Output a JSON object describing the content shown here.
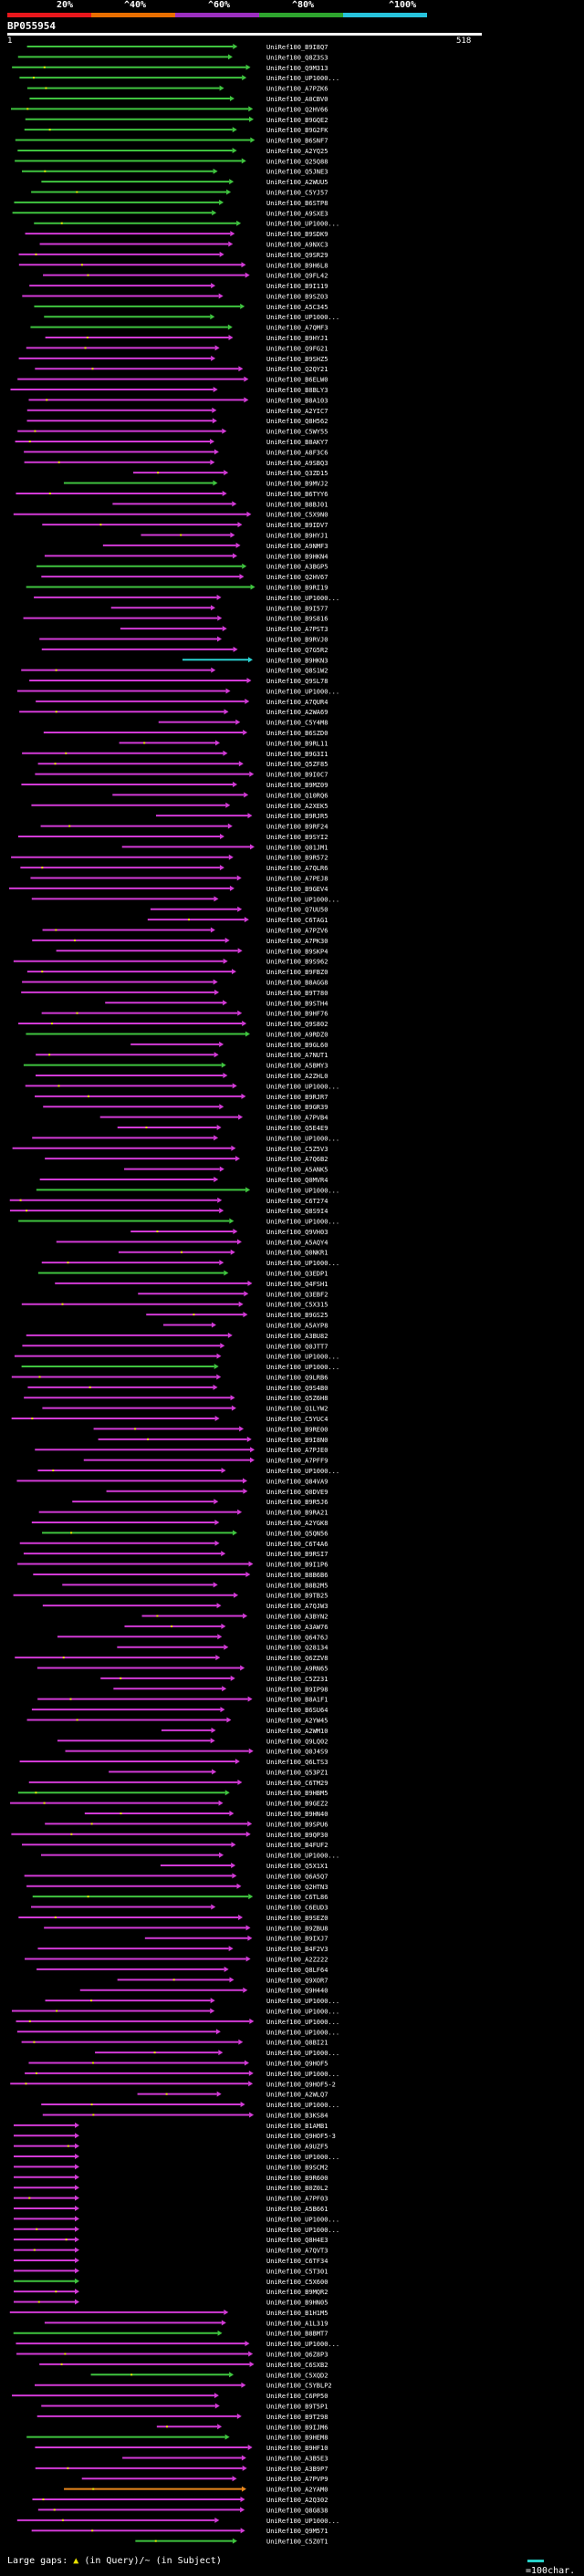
{
  "legend": {
    "labels": [
      "20%",
      "^40%",
      "^60%",
      "^80%",
      "^100%"
    ],
    "colors": [
      "#e8171c",
      "#e86e00",
      "#9b2fbf",
      "#2ea52e",
      "#27c3dc"
    ]
  },
  "query": {
    "name": "BP055954",
    "start": "1",
    "end": "518"
  },
  "colors": {
    "magenta": "#d23ad6",
    "green": "#3fc43f",
    "cyan": "#2ad0d0",
    "orange": "#e8871c",
    "dot": "#e8e800"
  },
  "footer": {
    "gaps_label": "Large gaps:",
    "query_gap": "(in Query)/~ (in Subject)",
    "scale": "=100char."
  },
  "hits": [
    "UniRef100_B9I8Q7",
    "UniRef100_Q8Z3S3",
    "UniRef100_Q9M313",
    "UniRef100_UP1000...",
    "UniRef100_A7PZK6",
    "UniRef100_A0CBV0",
    "UniRef100_Q2HV66",
    "UniRef100_B9GQE2",
    "UniRef100_B9G2FK",
    "UniRef100_B6SNF7",
    "UniRef100_A2YQ25",
    "UniRef100_Q25Q88",
    "UniRef100_Q5JNE3",
    "UniRef100_A2WUU5",
    "UniRef100_C5YJ57",
    "UniRef100_B6STP8",
    "UniRef100_A9SXE3",
    "UniRef100_UP1000...",
    "UniRef100_B9SDK9",
    "UniRef100_A9NXC3",
    "UniRef100_Q9SR29",
    "UniRef100_B9H6L8",
    "UniRef100_Q9FL42",
    "UniRef100_B9I119",
    "UniRef100_B9SZ03",
    "UniRef100_A5C345",
    "UniRef100_UP1000...",
    "UniRef100_A7QMF3",
    "UniRef100_B9HYJ1",
    "UniRef100_Q9FG21",
    "UniRef100_B9SHZ5",
    "UniRef100_Q2QY21",
    "UniRef100_B6ELW0",
    "UniRef100_B8BLY3",
    "UniRef100_B8A103",
    "UniRef100_A2YIC7",
    "UniRef100_Q8H562",
    "UniRef100_C5WY55",
    "UniRef100_B8AKY7",
    "UniRef100_A8F3C6",
    "UniRef100_A9SBQ3",
    "UniRef100_Q3ZD15",
    "UniRef100_B9MVJ2",
    "UniRef100_B6TYY6",
    "UniRef100_B8BJ01",
    "UniRef100_C5X9N0",
    "UniRef100_B9IDV7",
    "UniRef100_B9HYJ1",
    "UniRef100_A9NMF3",
    "UniRef100_B9HKN4",
    "UniRef100_A3BGP5",
    "UniRef100_Q2HV67",
    "UniRef100_B9RI19",
    "UniRef100_UP1000...",
    "UniRef100_B9I577",
    "UniRef100_B9S816",
    "UniRef100_A7PST3",
    "UniRef100_B9RVJ0",
    "UniRef100_Q7G5R2",
    "UniRef100_B9HKN3",
    "UniRef100_Q8S1W2",
    "UniRef100_Q9SL78",
    "UniRef100_UP1000...",
    "UniRef100_A7QUR4",
    "UniRef100_A2WA69",
    "UniRef100_C5Y4M8",
    "UniRef100_B6SZD0",
    "UniRef100_B9RL11",
    "UniRef100_B9G3I1",
    "UniRef100_Q5ZF85",
    "UniRef100_B9I0C7",
    "UniRef100_B9MZ09",
    "UniRef100_Q10RQ6",
    "UniRef100_A2XEK5",
    "UniRef100_B9RJR5",
    "UniRef100_B9RF24",
    "UniRef100_B9SYI2",
    "UniRef100_Q01JM1",
    "UniRef100_B9R572",
    "UniRef100_A7QLR6",
    "UniRef100_A7PEJ8",
    "UniRef100_B9GEV4",
    "UniRef100_UP1000...",
    "UniRef100_Q7UU50",
    "UniRef100_C6TAG1",
    "UniRef100_A7PZV6",
    "UniRef100_A7PK30",
    "UniRef100_B9SKP4",
    "UniRef100_B9S962",
    "UniRef100_B9FBZ0",
    "UniRef100_B8AGG8",
    "UniRef100_B9T780",
    "UniRef100_B9STH4",
    "UniRef100_B9HF76",
    "UniRef100_Q9S802",
    "UniRef100_A9RDZ0",
    "UniRef100_B9GL60",
    "UniRef100_A7NUT1",
    "UniRef100_A5BMY3",
    "UniRef100_A2ZHL0",
    "UniRef100_UP1000...",
    "UniRef100_B9RJR7",
    "UniRef100_B9GR39",
    "UniRef100_A7PVB4",
    "UniRef100_Q5E4E9",
    "UniRef100_UP1000...",
    "UniRef100_C5Z5V3",
    "UniRef100_A7Q6B2",
    "UniRef100_A5ANK5",
    "UniRef100_Q0MVR4",
    "UniRef100_UP1000...",
    "UniRef100_C6T274",
    "UniRef100_Q8S9I4",
    "UniRef100_UP1000...",
    "UniRef100_Q9VH03",
    "UniRef100_A5AQY4",
    "UniRef100_Q0NKR1",
    "UniRef100_UP1000...",
    "UniRef100_Q3EDP1",
    "UniRef100_Q4FSH1",
    "UniRef100_Q3EBF2",
    "UniRef100_C5X315",
    "UniRef100_B9GS25",
    "UniRef100_A5AYP8",
    "UniRef100_A3BU82",
    "UniRef100_Q0JTT7",
    "UniRef100_UP1000...",
    "UniRef100_UP1000...",
    "UniRef100_Q9LRB6",
    "UniRef100_Q9S4B0",
    "UniRef100_Q5Z6H8",
    "UniRef100_Q1LYW2",
    "UniRef100_C5YUC4",
    "UniRef100_B9RE00",
    "UniRef100_B9I8N0",
    "UniRef100_A7PJE0",
    "UniRef100_A7PFF9",
    "UniRef100_UP1000...",
    "UniRef100_Q84VA9",
    "UniRef100_Q0DVE9",
    "UniRef100_B9R5J6",
    "UniRef100_B9RA21",
    "UniRef100_A2YGK8",
    "UniRef100_Q5QN56",
    "UniRef100_C6T4A6",
    "UniRef100_B9RSI7",
    "UniRef100_B9I1P6",
    "UniRef100_B8B6B6",
    "UniRef100_B8B2M5",
    "UniRef100_B9TB25",
    "UniRef100_A7QJW3",
    "UniRef100_A3BYN2",
    "UniRef100_A3AW76",
    "UniRef100_Q6476J",
    "UniRef100_Q28134",
    "UniRef100_Q6ZZV8",
    "UniRef100_A9RN65",
    "UniRef100_C5Z231",
    "UniRef100_B9IP98",
    "UniRef100_B8A1F1",
    "UniRef100_B6SU64",
    "UniRef100_A2YW45",
    "UniRef100_A2WM10",
    "UniRef100_Q9LQ02",
    "UniRef100_Q0J4S9",
    "UniRef100_Q6LTS3",
    "UniRef100_Q53PZ1",
    "UniRef100_C6TM29",
    "UniRef100_B9HBM5",
    "UniRef100_B9GEZ2",
    "UniRef100_B9HN40",
    "UniRef100_B9SPU6",
    "UniRef100_B9QP30",
    "UniRef100_B4FUF2",
    "UniRef100_UP1000...",
    "UniRef100_Q5X1X1",
    "UniRef100_Q6A5Q7",
    "UniRef100_Q2HTN3",
    "UniRef100_C6TL86",
    "UniRef100_C6EUD3",
    "UniRef100_B9SEZ0",
    "UniRef100_B9ZBU8",
    "UniRef100_B9IXJ7",
    "UniRef100_B4F2V3",
    "UniRef100_A2Z222",
    "UniRef100_Q8LF64",
    "UniRef100_Q9XOR7",
    "UniRef100_Q9H440",
    "UniRef100_UP1000...",
    "UniRef100_UP1000...",
    "UniRef100_UP1000...",
    "UniRef100_UP1000...",
    "UniRef100_Q8BI21",
    "UniRef100_UP1000...",
    "UniRef100_Q9HOF5",
    "UniRef100_UP1000...",
    "UniRef100_Q9HOF5-2",
    "UniRef100_A2WLQ7",
    "UniRef100_UP1000...",
    "UniRef100_B3KS84",
    "UniRef100_B1AMB1",
    "UniRef100_Q9HOF5-3",
    "UniRef100_A9UZF5",
    "UniRef100_UP1000...",
    "UniRef100_B9SCM2",
    "UniRef100_B9R600",
    "UniRef100_B0Z0L2",
    "UniRef100_A7PF03",
    "UniRef100_A5B661",
    "UniRef100_UP1000...",
    "UniRef100_UP1000...",
    "UniRef100_Q8H4E3",
    "UniRef100_A7QVT3",
    "UniRef100_C6TF34",
    "UniRef100_C5T301",
    "UniRef100_C5X600",
    "UniRef100_B9MQR2",
    "UniRef100_B9HN05",
    "UniRef100_B1H1M5",
    "UniRef100_A1L319",
    "UniRef100_B8BMT7",
    "UniRef100_UP1000...",
    "UniRef100_Q6Z8P3",
    "UniRef100_C6SXB2",
    "UniRef100_C5XQD2",
    "UniRef100_C5YBLP2",
    "UniRef100_C6PP50",
    "UniRef100_B9T5P1",
    "UniRef100_B9T298",
    "UniRef100_B9IJM6",
    "UniRef100_B9HEM8",
    "UniRef100_B9HF10",
    "UniRef100_A3B5E3",
    "UniRef100_A3B9P7",
    "UniRef100_A7PVP9",
    "UniRef100_A2YAM0",
    "UniRef100_A2Q302",
    "UniRef100_Q8G838",
    "UniRef100_UP1000...",
    "UniRef100_Q9M571",
    "UniRef100_C5Z0T1"
  ]
}
